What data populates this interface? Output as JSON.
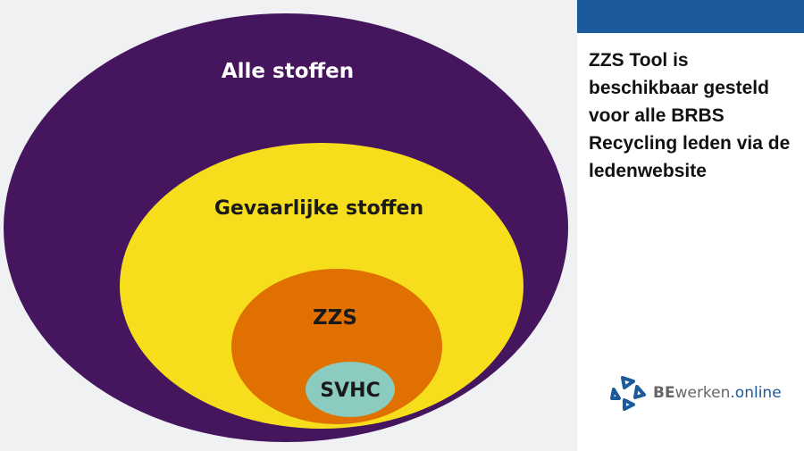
{
  "diagram": {
    "levels": [
      {
        "label": "Alle stoffen",
        "color": "#45155e",
        "text_color": "#ffffff"
      },
      {
        "label": "Gevaarlijke stoffen",
        "color": "#f7de1d",
        "text_color": "#1a1a1a"
      },
      {
        "label": "ZZS",
        "color": "#e07000",
        "text_color": "#1a1a1a"
      },
      {
        "label": "SVHC",
        "color": "#8ccbc0",
        "text_color": "#1a1a1a"
      }
    ]
  },
  "sidebar": {
    "accent": "#1c5a9c",
    "message": "ZZS Tool is beschikbaar gesteld voor alle BRBS Recycling leden via de ledenwebsite",
    "logo": {
      "part1": "BE",
      "part2": "werken",
      "part3": ".online"
    }
  }
}
